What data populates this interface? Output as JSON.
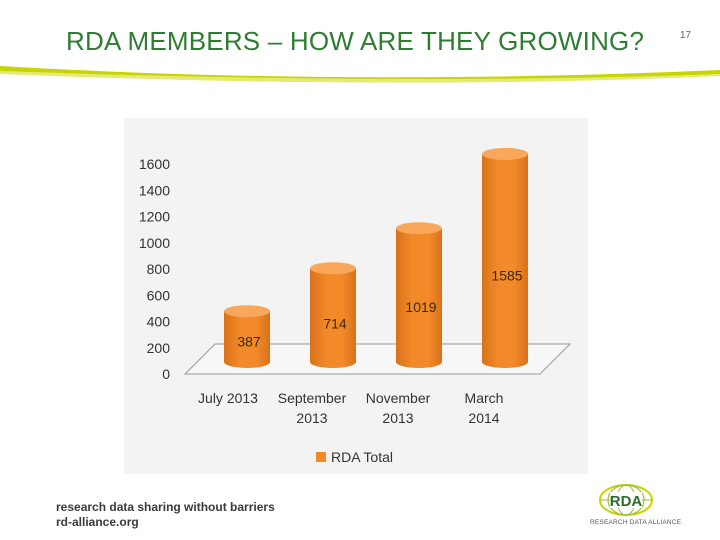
{
  "slide": {
    "title": "RDA MEMBERS – HOW ARE THEY GROWING?",
    "page_number": "17"
  },
  "footer": {
    "tagline": "research data sharing without barriers",
    "url": "rd-alliance.org",
    "logo_text": "RDA",
    "logo_subtext": "RESEARCH DATA ALLIANCE"
  },
  "colors": {
    "title": "#2e7d32",
    "accent_swoosh": "#c8d400",
    "bar": "#f28a2a",
    "bar_dark": "#d9711a",
    "bar_top": "#f9a75a"
  },
  "chart_data": {
    "type": "bar",
    "categories": [
      [
        "July 2013"
      ],
      [
        "September",
        "2013"
      ],
      [
        "November",
        "2013"
      ],
      [
        "March",
        "2014"
      ]
    ],
    "series": [
      {
        "name": "RDA Total",
        "values": [
          387,
          714,
          1019,
          1585
        ]
      }
    ],
    "yticks": [
      0,
      200,
      400,
      600,
      800,
      1000,
      1200,
      1400,
      1600
    ],
    "ylim": [
      0,
      1600
    ],
    "grid": false,
    "legend": "bottom",
    "style": "3d-cylinder"
  }
}
